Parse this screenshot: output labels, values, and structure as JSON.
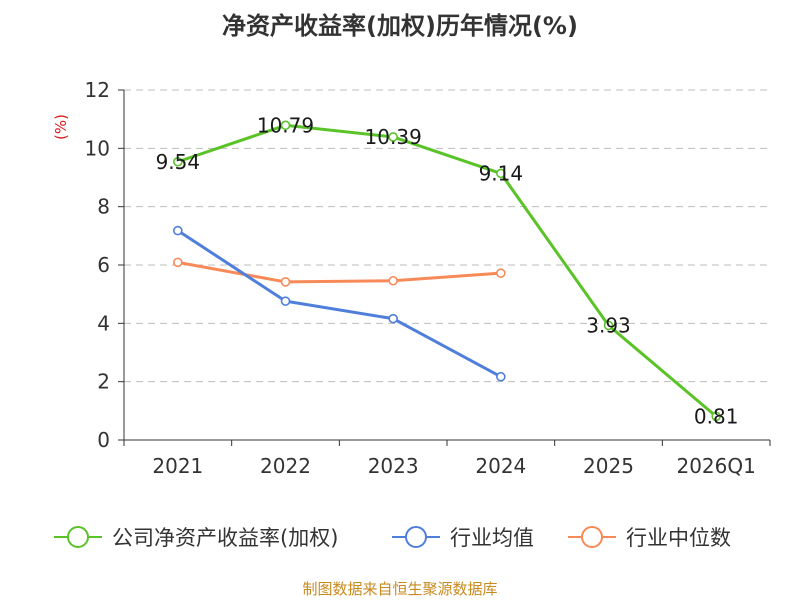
{
  "chart_data": {
    "type": "line",
    "title": "净资产收益率(加权)历年情况(%)",
    "ylabel": "(%)",
    "xlabel": "",
    "categories": [
      "2021",
      "2022",
      "2023",
      "2024",
      "2025",
      "2026Q1"
    ],
    "ylim": [
      0,
      12
    ],
    "yticks": [
      0,
      2,
      4,
      6,
      8,
      10,
      12
    ],
    "grid": true,
    "legend_position": "bottom",
    "series": [
      {
        "name": "公司净资产收益率(加权)",
        "color": "#5ac328",
        "values": [
          9.54,
          10.79,
          10.39,
          9.14,
          3.93,
          0.81
        ],
        "labels": [
          "9.54",
          "10.79",
          "10.39",
          "9.14",
          "3.93",
          "0.81"
        ]
      },
      {
        "name": "行业均值",
        "color": "#4f7fdb",
        "values": [
          7.18,
          4.76,
          4.16,
          2.17,
          null,
          null
        ]
      },
      {
        "name": "行业中位数",
        "color": "#f78a58",
        "values": [
          6.09,
          5.42,
          5.46,
          5.72,
          null,
          null
        ]
      }
    ]
  },
  "source": "制图数据来自恒生聚源数据库"
}
